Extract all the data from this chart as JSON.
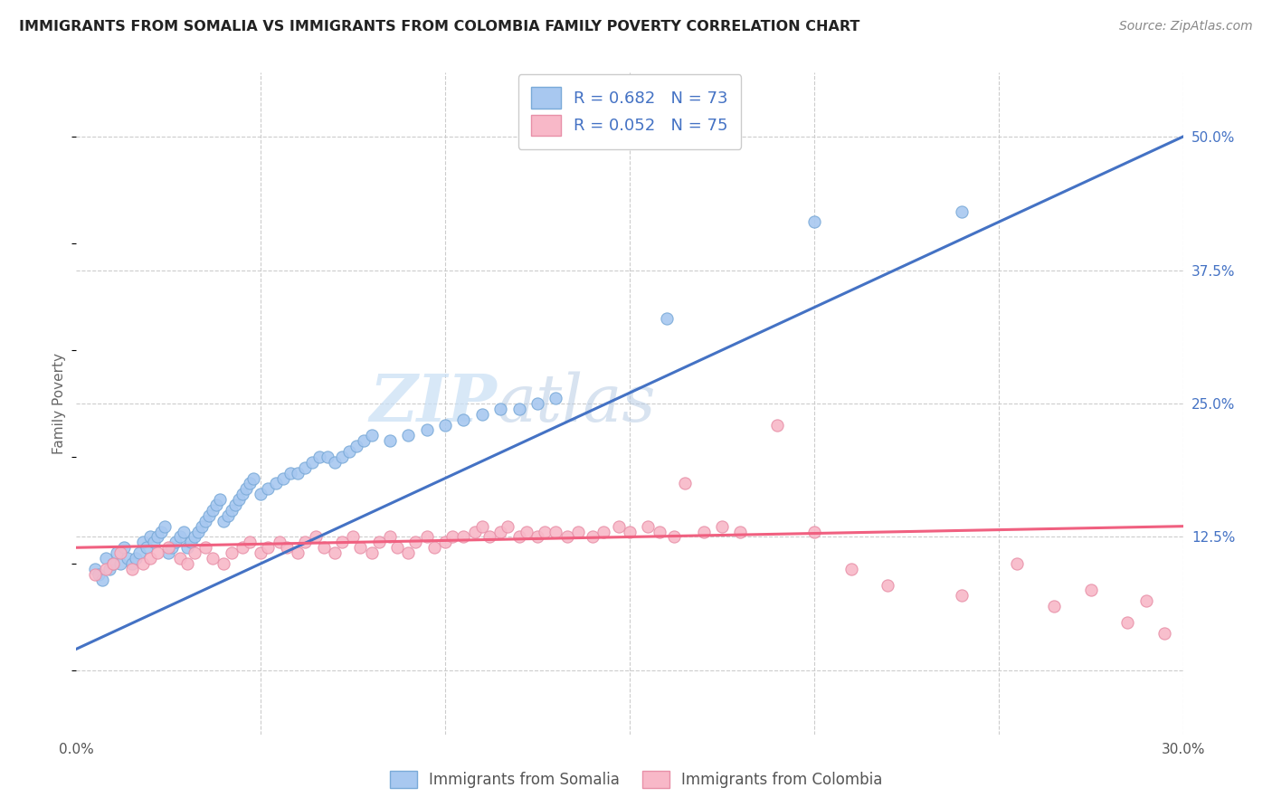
{
  "title": "IMMIGRANTS FROM SOMALIA VS IMMIGRANTS FROM COLOMBIA FAMILY POVERTY CORRELATION CHART",
  "source": "Source: ZipAtlas.com",
  "ylabel": "Family Poverty",
  "xlim": [
    0.0,
    0.3
  ],
  "ylim": [
    -0.06,
    0.56
  ],
  "somalia_color": "#A8C8F0",
  "somalia_edge": "#7AAAD8",
  "colombia_color": "#F8B8C8",
  "colombia_edge": "#E890A8",
  "somalia_R": 0.682,
  "somalia_N": 73,
  "colombia_R": 0.052,
  "colombia_N": 75,
  "somalia_line_color": "#4472C4",
  "colombia_line_color": "#F06080",
  "watermark_zip": "ZIP",
  "watermark_atlas": "atlas",
  "background_color": "#FFFFFF",
  "grid_color": "#CCCCCC",
  "title_color": "#222222",
  "right_tick_color": "#4472C4",
  "somalia_scatter_x": [
    0.005,
    0.006,
    0.007,
    0.008,
    0.009,
    0.01,
    0.011,
    0.012,
    0.013,
    0.014,
    0.015,
    0.016,
    0.017,
    0.018,
    0.019,
    0.02,
    0.021,
    0.022,
    0.023,
    0.024,
    0.025,
    0.026,
    0.027,
    0.028,
    0.029,
    0.03,
    0.031,
    0.032,
    0.033,
    0.034,
    0.035,
    0.036,
    0.037,
    0.038,
    0.039,
    0.04,
    0.041,
    0.042,
    0.043,
    0.044,
    0.045,
    0.046,
    0.047,
    0.048,
    0.05,
    0.052,
    0.054,
    0.056,
    0.058,
    0.06,
    0.062,
    0.064,
    0.066,
    0.068,
    0.07,
    0.072,
    0.074,
    0.076,
    0.078,
    0.08,
    0.085,
    0.09,
    0.095,
    0.1,
    0.105,
    0.11,
    0.115,
    0.12,
    0.125,
    0.13,
    0.16,
    0.2,
    0.24
  ],
  "somalia_scatter_y": [
    0.095,
    0.09,
    0.085,
    0.105,
    0.095,
    0.1,
    0.11,
    0.1,
    0.115,
    0.105,
    0.1,
    0.105,
    0.11,
    0.12,
    0.115,
    0.125,
    0.12,
    0.125,
    0.13,
    0.135,
    0.11,
    0.115,
    0.12,
    0.125,
    0.13,
    0.115,
    0.12,
    0.125,
    0.13,
    0.135,
    0.14,
    0.145,
    0.15,
    0.155,
    0.16,
    0.14,
    0.145,
    0.15,
    0.155,
    0.16,
    0.165,
    0.17,
    0.175,
    0.18,
    0.165,
    0.17,
    0.175,
    0.18,
    0.185,
    0.185,
    0.19,
    0.195,
    0.2,
    0.2,
    0.195,
    0.2,
    0.205,
    0.21,
    0.215,
    0.22,
    0.215,
    0.22,
    0.225,
    0.23,
    0.235,
    0.24,
    0.245,
    0.245,
    0.25,
    0.255,
    0.33,
    0.42,
    0.43
  ],
  "colombia_scatter_x": [
    0.005,
    0.008,
    0.01,
    0.012,
    0.015,
    0.018,
    0.02,
    0.022,
    0.025,
    0.028,
    0.03,
    0.032,
    0.035,
    0.037,
    0.04,
    0.042,
    0.045,
    0.047,
    0.05,
    0.052,
    0.055,
    0.057,
    0.06,
    0.062,
    0.065,
    0.067,
    0.07,
    0.072,
    0.075,
    0.077,
    0.08,
    0.082,
    0.085,
    0.087,
    0.09,
    0.092,
    0.095,
    0.097,
    0.1,
    0.102,
    0.105,
    0.108,
    0.11,
    0.112,
    0.115,
    0.117,
    0.12,
    0.122,
    0.125,
    0.127,
    0.13,
    0.133,
    0.136,
    0.14,
    0.143,
    0.147,
    0.15,
    0.155,
    0.158,
    0.162,
    0.165,
    0.17,
    0.175,
    0.18,
    0.19,
    0.2,
    0.21,
    0.22,
    0.24,
    0.255,
    0.265,
    0.275,
    0.285,
    0.29,
    0.295
  ],
  "colombia_scatter_y": [
    0.09,
    0.095,
    0.1,
    0.11,
    0.095,
    0.1,
    0.105,
    0.11,
    0.115,
    0.105,
    0.1,
    0.11,
    0.115,
    0.105,
    0.1,
    0.11,
    0.115,
    0.12,
    0.11,
    0.115,
    0.12,
    0.115,
    0.11,
    0.12,
    0.125,
    0.115,
    0.11,
    0.12,
    0.125,
    0.115,
    0.11,
    0.12,
    0.125,
    0.115,
    0.11,
    0.12,
    0.125,
    0.115,
    0.12,
    0.125,
    0.125,
    0.13,
    0.135,
    0.125,
    0.13,
    0.135,
    0.125,
    0.13,
    0.125,
    0.13,
    0.13,
    0.125,
    0.13,
    0.125,
    0.13,
    0.135,
    0.13,
    0.135,
    0.13,
    0.125,
    0.175,
    0.13,
    0.135,
    0.13,
    0.23,
    0.13,
    0.095,
    0.08,
    0.07,
    0.1,
    0.06,
    0.075,
    0.045,
    0.065,
    0.035
  ]
}
